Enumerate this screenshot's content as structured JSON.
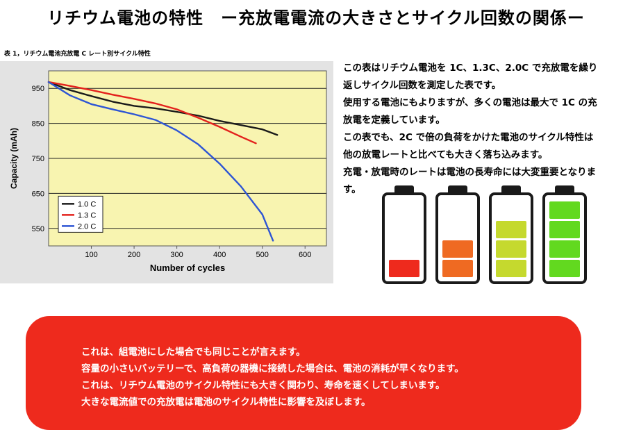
{
  "title": "リチウム電池の特性　ー充放電電流の大きさとサイクル回数の関係ー",
  "chart_caption": "表 1，リチウム電池充放電 C レート別サイクル特性",
  "description": [
    "この表はリチウム電池を 1C、1.3C、2.0C で充放電を繰り",
    "返しサイクル回数を測定した表です。",
    "使用する電池にもよりますが、多くの電池は最大で 1C の充",
    "放電を定義しています。",
    "この表でも、2C で倍の負荷をかけた電池のサイクル特性は",
    "他の放電レートと比べても大きく落ち込みます。",
    "充電・放電時のレートは電池の長寿命には大変重要となりま",
    "す。"
  ],
  "note_lines": [
    "これは、組電池にした場合でも同じことが言えます。",
    "容量の小さいバッテリーで、高負荷の器機に接続した場合は、電池の消耗が早くなります。",
    "これは、リチウム電池のサイクル特性にも大きく関わり、寿命を速くしてしまいます。",
    "大きな電流値での充放電は電池のサイクル特性に影響を及ぼします。"
  ],
  "colors": {
    "plot_background": "#f8f4b0",
    "note_box": "#ee2a1d",
    "battery_levels": [
      "#ee2a1d",
      "#ef6a22",
      "#c5d92e",
      "#62d91f"
    ]
  },
  "battery_icons": [
    {
      "name": "battery-1-bar-icon",
      "level": 1
    },
    {
      "name": "battery-2-bars-icon",
      "level": 2
    },
    {
      "name": "battery-3-bars-icon",
      "level": 3
    },
    {
      "name": "battery-4-bars-icon",
      "level": 4
    }
  ],
  "chart_data": {
    "type": "line",
    "xlabel": "Number of cycles",
    "ylabel": "Capacity (mAh)",
    "xlim": [
      0,
      650
    ],
    "ylim": [
      500,
      1000
    ],
    "xticks": [
      100,
      200,
      300,
      400,
      500,
      600
    ],
    "yticks": [
      550,
      650,
      750,
      850,
      950
    ],
    "grid": "horizontal",
    "legend_position": "bottom-left",
    "series": [
      {
        "name": "1.0 C",
        "color": "#1a1a1a",
        "points": [
          [
            0,
            968
          ],
          [
            50,
            945
          ],
          [
            100,
            928
          ],
          [
            150,
            912
          ],
          [
            200,
            900
          ],
          [
            250,
            893
          ],
          [
            300,
            883
          ],
          [
            350,
            872
          ],
          [
            400,
            857
          ],
          [
            450,
            845
          ],
          [
            500,
            833
          ],
          [
            535,
            817
          ]
        ]
      },
      {
        "name": "1.3 C",
        "color": "#e3211c",
        "points": [
          [
            0,
            968
          ],
          [
            50,
            957
          ],
          [
            100,
            945
          ],
          [
            150,
            932
          ],
          [
            200,
            920
          ],
          [
            250,
            907
          ],
          [
            300,
            890
          ],
          [
            350,
            866
          ],
          [
            400,
            840
          ],
          [
            450,
            812
          ],
          [
            485,
            793
          ]
        ]
      },
      {
        "name": "2.0 C",
        "color": "#2e55d4",
        "points": [
          [
            0,
            968
          ],
          [
            50,
            930
          ],
          [
            100,
            905
          ],
          [
            150,
            890
          ],
          [
            200,
            876
          ],
          [
            250,
            860
          ],
          [
            300,
            830
          ],
          [
            350,
            790
          ],
          [
            400,
            735
          ],
          [
            450,
            670
          ],
          [
            500,
            590
          ],
          [
            525,
            515
          ]
        ]
      }
    ]
  }
}
